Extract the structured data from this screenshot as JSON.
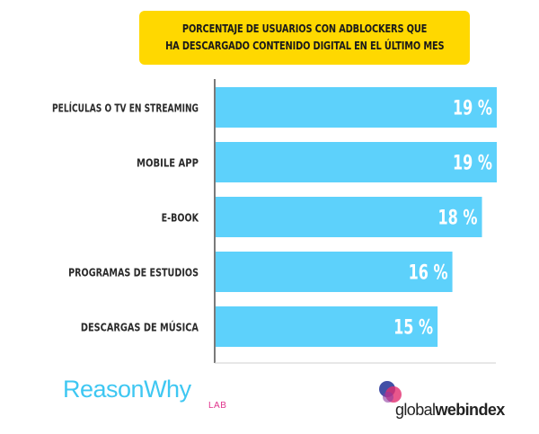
{
  "title": {
    "line1": "PORCENTAJE DE USUARIOS CON ADBLOCKERS QUE",
    "line2": "HA DESCARGADO CONTENIDO DIGITAL EN EL ÚLTIMO MES"
  },
  "colors": {
    "title_bg": "#ffd800",
    "bar": "#5dd1fb",
    "brand_left": "#3ec7f2",
    "brand_left_sub": "#e0338c"
  },
  "chart_data": {
    "type": "bar",
    "orientation": "horizontal",
    "title": "PORCENTAJE DE USUARIOS CON ADBLOCKERS QUE HA DESCARGADO CONTENIDO DIGITAL EN EL ÚLTIMO MES",
    "categories": [
      "PELÍCULAS O TV EN STREAMING",
      "MOBILE APP",
      "E-BOOK",
      "PROGRAMAS DE ESTUDIOS",
      "DESCARGAS DE MÚSICA"
    ],
    "values": [
      19,
      19,
      18,
      16,
      15
    ],
    "value_labels": [
      "19 %",
      "19 %",
      "18 %",
      "16 %",
      "15 %"
    ],
    "unit": "%",
    "xlim": [
      0,
      19
    ],
    "grid": false
  },
  "logos": {
    "left": {
      "main": "ReasonWhy",
      "sub": "LAB"
    },
    "right": {
      "prefix": "global",
      "bold": "webindex",
      "icon": "overlapping-circles-icon"
    }
  }
}
